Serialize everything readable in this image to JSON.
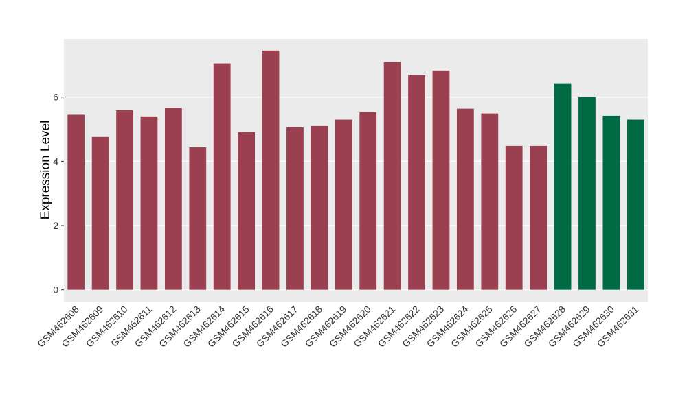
{
  "chart_data": {
    "type": "bar",
    "y_label": "Expression Level",
    "categories": [
      "GSM462608",
      "GSM462609",
      "GSM462610",
      "GSM462611",
      "GSM462612",
      "GSM462613",
      "GSM462614",
      "GSM462615",
      "GSM462616",
      "GSM462617",
      "GSM462618",
      "GSM462619",
      "GSM462620",
      "GSM462621",
      "GSM462622",
      "GSM462623",
      "GSM462624",
      "GSM462625",
      "GSM462626",
      "GSM462627",
      "GSM462628",
      "GSM462629",
      "GSM462630",
      "GSM462631"
    ],
    "values": [
      5.45,
      4.76,
      5.59,
      5.4,
      5.66,
      4.44,
      7.05,
      4.91,
      7.45,
      5.06,
      5.1,
      5.3,
      5.53,
      7.09,
      6.68,
      6.83,
      5.64,
      5.49,
      4.48,
      4.48,
      6.43,
      6.0,
      5.42,
      5.3
    ],
    "colors": [
      "#9a4050",
      "#9a4050",
      "#9a4050",
      "#9a4050",
      "#9a4050",
      "#9a4050",
      "#9a4050",
      "#9a4050",
      "#9a4050",
      "#9a4050",
      "#9a4050",
      "#9a4050",
      "#9a4050",
      "#9a4050",
      "#9a4050",
      "#9a4050",
      "#9a4050",
      "#9a4050",
      "#9a4050",
      "#9a4050",
      "#006a44",
      "#006a44",
      "#006a44",
      "#006a44"
    ],
    "ylim": [
      -0.37,
      7.81
    ],
    "yticks": [
      0,
      2,
      4,
      6
    ],
    "grid": true
  }
}
